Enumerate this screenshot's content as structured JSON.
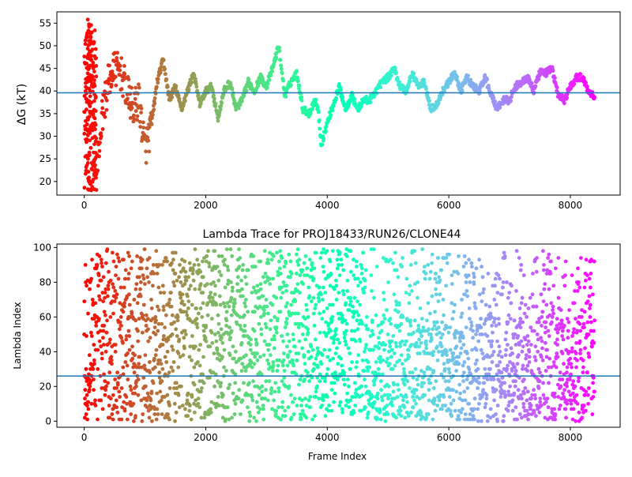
{
  "chart_data": [
    {
      "type": "scatter",
      "title": "",
      "xlabel": "",
      "ylabel": "ΔG (kT)",
      "xlim": [
        -450,
        8820
      ],
      "ylim": [
        17,
        57.5
      ],
      "xticks": [
        0,
        2000,
        4000,
        6000,
        8000
      ],
      "xtick_labels": [
        "0",
        "2000",
        "4000",
        "6000",
        "8000"
      ],
      "yticks": [
        20,
        25,
        30,
        35,
        40,
        45,
        50,
        55
      ],
      "ytick_labels": [
        "20",
        "25",
        "30",
        "35",
        "40",
        "45",
        "50",
        "55"
      ],
      "reference_line": 39.6,
      "colormap": "rainbow (red at frame 0 to violet at last frame)",
      "grid": false,
      "legend": "none",
      "series": [
        {
          "values_approx": "noisy trace of ΔG vs frame index",
          "x": [
            0,
            30,
            60,
            100,
            150,
            200,
            300,
            400,
            500,
            600,
            700,
            800,
            900,
            1000,
            1100,
            1200,
            1300,
            1400,
            1500,
            1600,
            1700,
            1800,
            1900,
            2000,
            2100,
            2200,
            2300,
            2400,
            2500,
            2600,
            2700,
            2800,
            2900,
            3000,
            3100,
            3200,
            3300,
            3400,
            3500,
            3600,
            3700,
            3800,
            3850,
            3900,
            4000,
            4100,
            4200,
            4300,
            4400,
            4500,
            4600,
            4700,
            4800,
            4900,
            5000,
            5100,
            5200,
            5300,
            5400,
            5500,
            5600,
            5700,
            5800,
            5900,
            6000,
            6100,
            6200,
            6300,
            6400,
            6500,
            6600,
            6700,
            6800,
            6900,
            7000,
            7100,
            7200,
            7300,
            7400,
            7500,
            7600,
            7700,
            7800,
            7900,
            8000,
            8100,
            8200,
            8300,
            8400
          ],
          "y": [
            35,
            25,
            45,
            50,
            38,
            22,
            35,
            42,
            45,
            44,
            40,
            36,
            38,
            27,
            32,
            42,
            47,
            38,
            41,
            36,
            40,
            44,
            37,
            40,
            41,
            34,
            40,
            42,
            36,
            38,
            42,
            40,
            43,
            41,
            45,
            50,
            39,
            42,
            44,
            36,
            35,
            38,
            36,
            28,
            33,
            37,
            41,
            36,
            39,
            36,
            38,
            38,
            40,
            42,
            43,
            45,
            41,
            40,
            44,
            41,
            42,
            36,
            37,
            40,
            42,
            44,
            40,
            43,
            41,
            40,
            43,
            39,
            36,
            38,
            38,
            41,
            42,
            43,
            40,
            44,
            44,
            45,
            39,
            38,
            41,
            43,
            43,
            40,
            39
          ]
        }
      ]
    },
    {
      "type": "scatter",
      "title": "Lambda Trace for PROJ18433/RUN26/CLONE44",
      "xlabel": "Frame Index",
      "ylabel": "Lambda Index",
      "xlim": [
        -450,
        8820
      ],
      "ylim": [
        -3.5,
        102
      ],
      "xticks": [
        0,
        2000,
        4000,
        6000,
        8000
      ],
      "xtick_labels": [
        "0",
        "2000",
        "4000",
        "6000",
        "8000"
      ],
      "yticks": [
        0,
        20,
        40,
        60,
        80,
        100
      ],
      "ytick_labels": [
        "0",
        "20",
        "40",
        "60",
        "80",
        "100"
      ],
      "reference_line": 26,
      "colormap": "rainbow (red at frame 0 to violet at last frame)",
      "grid": false,
      "legend": "none",
      "series": [
        {
          "values_approx": "lambda index 0–99 sampled densely across frames 0–8400 with vertical streaks"
        }
      ]
    }
  ]
}
